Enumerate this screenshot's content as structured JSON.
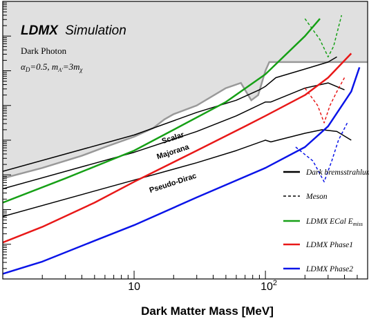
{
  "chart_data": {
    "type": "line",
    "title": "LDMX",
    "subtitle": "Simulation",
    "annotations": {
      "line1": "Dark Photon",
      "alpha_sym": "α",
      "alpha_sub": "D",
      "alpha_rest": "=0.5, m",
      "mA_sub": "A'",
      "eq": "=3m",
      "chi_sub": "χ"
    },
    "xlabel": "Dark Matter Mass [MeV]",
    "x_scale": "log",
    "xlim": [
      1.0,
      600
    ],
    "x_ticks": [
      {
        "value": 10,
        "base": "10",
        "exp": ""
      },
      {
        "value": 100,
        "base": "10",
        "exp": "2"
      }
    ],
    "y_scale": "log",
    "ylim": [
      1e-16,
      1e-08
    ],
    "excluded_region": {
      "color": "#e0e0e0",
      "boundary": [
        [
          1.0,
          -13.1
        ],
        [
          2.0,
          -12.8
        ],
        [
          4.0,
          -12.45
        ],
        [
          6.0,
          -12.2
        ],
        [
          10.0,
          -11.9
        ],
        [
          14.0,
          -11.65
        ],
        [
          17.0,
          -11.4
        ],
        [
          20.0,
          -11.25
        ],
        [
          30.0,
          -11.0
        ],
        [
          50.0,
          -10.5
        ],
        [
          65.0,
          -10.35
        ],
        [
          78.0,
          -10.85
        ],
        [
          88.0,
          -10.7
        ],
        [
          100.0,
          -10.0
        ],
        [
          107.0,
          -9.75
        ],
        [
          600.0,
          -9.75
        ]
      ]
    },
    "curve_labels": [
      {
        "text": "Scalar",
        "x": 20,
        "y": -12.0,
        "rot": -18
      },
      {
        "text": "Majorana",
        "x": 20,
        "y": -12.4,
        "rot": -18
      },
      {
        "text": "Pseudo-Dirac",
        "x": 20,
        "y": -13.3,
        "rot": -18
      }
    ],
    "legend": {
      "position": "right",
      "entries": [
        {
          "label": "Dark bremsstrahlung",
          "style": "solid",
          "color": "#000000"
        },
        {
          "label": "Meson",
          "style": "dashed",
          "color": "#000000"
        },
        {
          "label": "LDMX ECal E_miss",
          "style": "solid",
          "color": "#16a016"
        },
        {
          "label": "LDMX Phase1",
          "style": "solid",
          "color": "#e81818"
        },
        {
          "label": "LDMX Phase2",
          "style": "solid",
          "color": "#0a14e8"
        }
      ]
    },
    "series": [
      {
        "id": "relic-scalar",
        "style": "solid",
        "color": "#000000",
        "width": 1.5,
        "points": [
          [
            1.0,
            -12.9
          ],
          [
            10.0,
            -11.85
          ],
          [
            30.0,
            -11.2
          ],
          [
            60.0,
            -10.85
          ],
          [
            90.0,
            -10.55
          ],
          [
            100.0,
            -10.45
          ],
          [
            120.0,
            -10.2
          ],
          [
            200.0,
            -9.95
          ],
          [
            300.0,
            -9.75
          ],
          [
            350.0,
            -9.6
          ]
        ]
      },
      {
        "id": "relic-majorana",
        "style": "solid",
        "color": "#000000",
        "width": 1.5,
        "points": [
          [
            1.0,
            -13.4
          ],
          [
            10.0,
            -12.35
          ],
          [
            30.0,
            -11.75
          ],
          [
            60.0,
            -11.3
          ],
          [
            100.0,
            -10.9
          ],
          [
            110.0,
            -10.9
          ],
          [
            200.0,
            -10.5
          ],
          [
            300.0,
            -10.35
          ],
          [
            400.0,
            -10.55
          ]
        ]
      },
      {
        "id": "relic-pseudodirac",
        "style": "solid",
        "color": "#000000",
        "width": 1.5,
        "points": [
          [
            1.0,
            -14.2
          ],
          [
            10.0,
            -13.15
          ],
          [
            30.0,
            -12.65
          ],
          [
            60.0,
            -12.3
          ],
          [
            100.0,
            -12.0
          ],
          [
            110.0,
            -12.05
          ],
          [
            200.0,
            -11.8
          ],
          [
            270.0,
            -11.7
          ],
          [
            350.0,
            -11.75
          ],
          [
            450.0,
            -12.0
          ]
        ]
      },
      {
        "id": "meson-upper",
        "style": "dashed",
        "color": "#16a016",
        "width": 1.5,
        "points": [
          [
            200.0,
            -8.5
          ],
          [
            260.0,
            -9.1
          ],
          [
            300.0,
            -9.6
          ],
          [
            330.0,
            -9.3
          ],
          [
            380.0,
            -8.4
          ]
        ]
      },
      {
        "id": "meson-red",
        "style": "dashed",
        "color": "#e81818",
        "width": 1.5,
        "points": [
          [
            200.0,
            -10.5
          ],
          [
            250.0,
            -11.0
          ],
          [
            280.0,
            -11.5
          ],
          [
            310.0,
            -11.0
          ],
          [
            350.0,
            -10.6
          ],
          [
            400.0,
            -10.2
          ]
        ]
      },
      {
        "id": "meson-blue",
        "style": "dashed",
        "color": "#0a14e8",
        "width": 1.5,
        "points": [
          [
            170.0,
            -12.2
          ],
          [
            230.0,
            -12.6
          ],
          [
            280.0,
            -13.2
          ],
          [
            320.0,
            -12.6
          ],
          [
            360.0,
            -12.0
          ],
          [
            420.0,
            -11.5
          ]
        ]
      },
      {
        "id": "ldmx-ecal",
        "style": "solid",
        "color": "#16a016",
        "width": 2.5,
        "points": [
          [
            1.0,
            -13.8
          ],
          [
            3.0,
            -13.1
          ],
          [
            10.0,
            -12.3
          ],
          [
            20.0,
            -11.7
          ],
          [
            50.0,
            -10.9
          ],
          [
            100.0,
            -10.1
          ],
          [
            200.0,
            -9.0
          ],
          [
            260.0,
            -8.5
          ]
        ]
      },
      {
        "id": "ldmx-phase1",
        "style": "solid",
        "color": "#e81818",
        "width": 2.5,
        "points": [
          [
            1.0,
            -14.95
          ],
          [
            2.0,
            -14.5
          ],
          [
            5.0,
            -13.8
          ],
          [
            10.0,
            -13.2
          ],
          [
            30.0,
            -12.3
          ],
          [
            70.0,
            -11.6
          ],
          [
            100.0,
            -11.3
          ],
          [
            200.0,
            -10.7
          ],
          [
            300.0,
            -10.2
          ],
          [
            450.0,
            -9.5
          ]
        ]
      },
      {
        "id": "ldmx-phase2",
        "style": "solid",
        "color": "#0a14e8",
        "width": 2.5,
        "points": [
          [
            1.0,
            -15.85
          ],
          [
            2.0,
            -15.5
          ],
          [
            5.0,
            -14.9
          ],
          [
            10.0,
            -14.45
          ],
          [
            30.0,
            -13.65
          ],
          [
            100.0,
            -12.8
          ],
          [
            200.0,
            -12.2
          ],
          [
            300.0,
            -11.6
          ],
          [
            450.0,
            -10.6
          ],
          [
            520.0,
            -9.9
          ]
        ]
      }
    ]
  }
}
